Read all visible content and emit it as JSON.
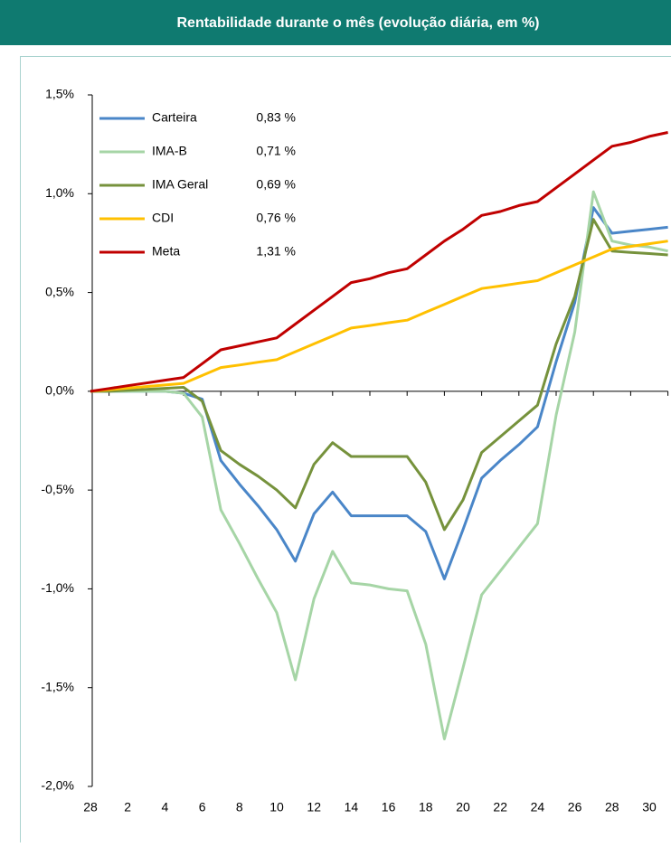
{
  "chart_data": {
    "type": "line",
    "title": "Rentabilidade durante o mês (evolução diária, em %)",
    "categories": [
      "28",
      null,
      "2",
      null,
      "4",
      null,
      "6",
      null,
      "8",
      null,
      "10",
      null,
      "12",
      null,
      "14",
      null,
      "16",
      null,
      "18",
      null,
      "20",
      null,
      "22",
      null,
      "24",
      null,
      "26",
      null,
      "28",
      null,
      "30",
      null
    ],
    "ylim": [
      -2,
      1.5
    ],
    "yticks": [
      {
        "value": -2,
        "label": "-2,0%"
      },
      {
        "value": -1.5,
        "label": "-1,5%"
      },
      {
        "value": -1,
        "label": "-1,0%"
      },
      {
        "value": -0.5,
        "label": "-0,5%"
      },
      {
        "value": 0,
        "label": "0,0%"
      },
      {
        "value": 0.5,
        "label": "0,5%"
      },
      {
        "value": 1,
        "label": "1,0%"
      },
      {
        "value": 1.5,
        "label": "1,5%"
      }
    ],
    "legend": "top-left",
    "series": [
      {
        "name": "Carteira",
        "color": "#4a86c8",
        "value_label": "0,83 %",
        "values": [
          0,
          0,
          0,
          0,
          0,
          -0.01,
          -0.04,
          -0.35,
          -0.47,
          -0.58,
          -0.7,
          -0.86,
          -0.62,
          -0.51,
          -0.63,
          -0.63,
          -0.63,
          -0.63,
          -0.71,
          -0.95,
          -0.7,
          -0.44,
          -0.35,
          -0.27,
          -0.18,
          0.15,
          0.45,
          0.93,
          0.8,
          0.81,
          0.82,
          0.83
        ]
      },
      {
        "name": "IMA-B",
        "color": "#a6d5a6",
        "value_label": "0,71 %",
        "values": [
          0,
          0,
          0,
          0,
          0,
          -0.01,
          -0.13,
          -0.6,
          -0.77,
          -0.95,
          -1.12,
          -1.46,
          -1.05,
          -0.81,
          -0.97,
          -0.98,
          -1.0,
          -1.01,
          -1.28,
          -1.76,
          -1.4,
          -1.03,
          -0.91,
          -0.79,
          -0.67,
          -0.12,
          0.3,
          1.01,
          0.76,
          0.74,
          0.73,
          0.71
        ]
      },
      {
        "name": "IMA Geral",
        "color": "#76923c",
        "value_label": "0,69 %",
        "values": [
          0,
          0,
          0.005,
          0.01,
          0.015,
          0.02,
          -0.05,
          -0.3,
          -0.37,
          -0.43,
          -0.5,
          -0.59,
          -0.37,
          -0.26,
          -0.33,
          -0.33,
          -0.33,
          -0.33,
          -0.46,
          -0.7,
          -0.55,
          -0.31,
          -0.23,
          -0.15,
          -0.07,
          0.24,
          0.48,
          0.87,
          0.71,
          0.703,
          0.697,
          0.69
        ]
      },
      {
        "name": "CDI",
        "color": "#ffc000",
        "value_label": "0,76 %",
        "values": [
          0,
          0.008,
          0.016,
          0.024,
          0.032,
          0.04,
          0.08,
          0.12,
          0.133,
          0.147,
          0.16,
          0.2,
          0.24,
          0.28,
          0.32,
          0.333,
          0.347,
          0.36,
          0.4,
          0.44,
          0.48,
          0.52,
          0.533,
          0.547,
          0.56,
          0.6,
          0.64,
          0.68,
          0.72,
          0.733,
          0.747,
          0.76
        ]
      },
      {
        "name": "Meta",
        "color": "#c00000",
        "value_label": "1,31 %",
        "values": [
          0,
          0.014,
          0.028,
          0.042,
          0.056,
          0.07,
          0.14,
          0.21,
          0.23,
          0.25,
          0.27,
          0.34,
          0.41,
          0.48,
          0.55,
          0.57,
          0.6,
          0.62,
          0.69,
          0.76,
          0.82,
          0.89,
          0.91,
          0.94,
          0.96,
          1.03,
          1.1,
          1.17,
          1.24,
          1.26,
          1.29,
          1.31
        ]
      }
    ]
  }
}
